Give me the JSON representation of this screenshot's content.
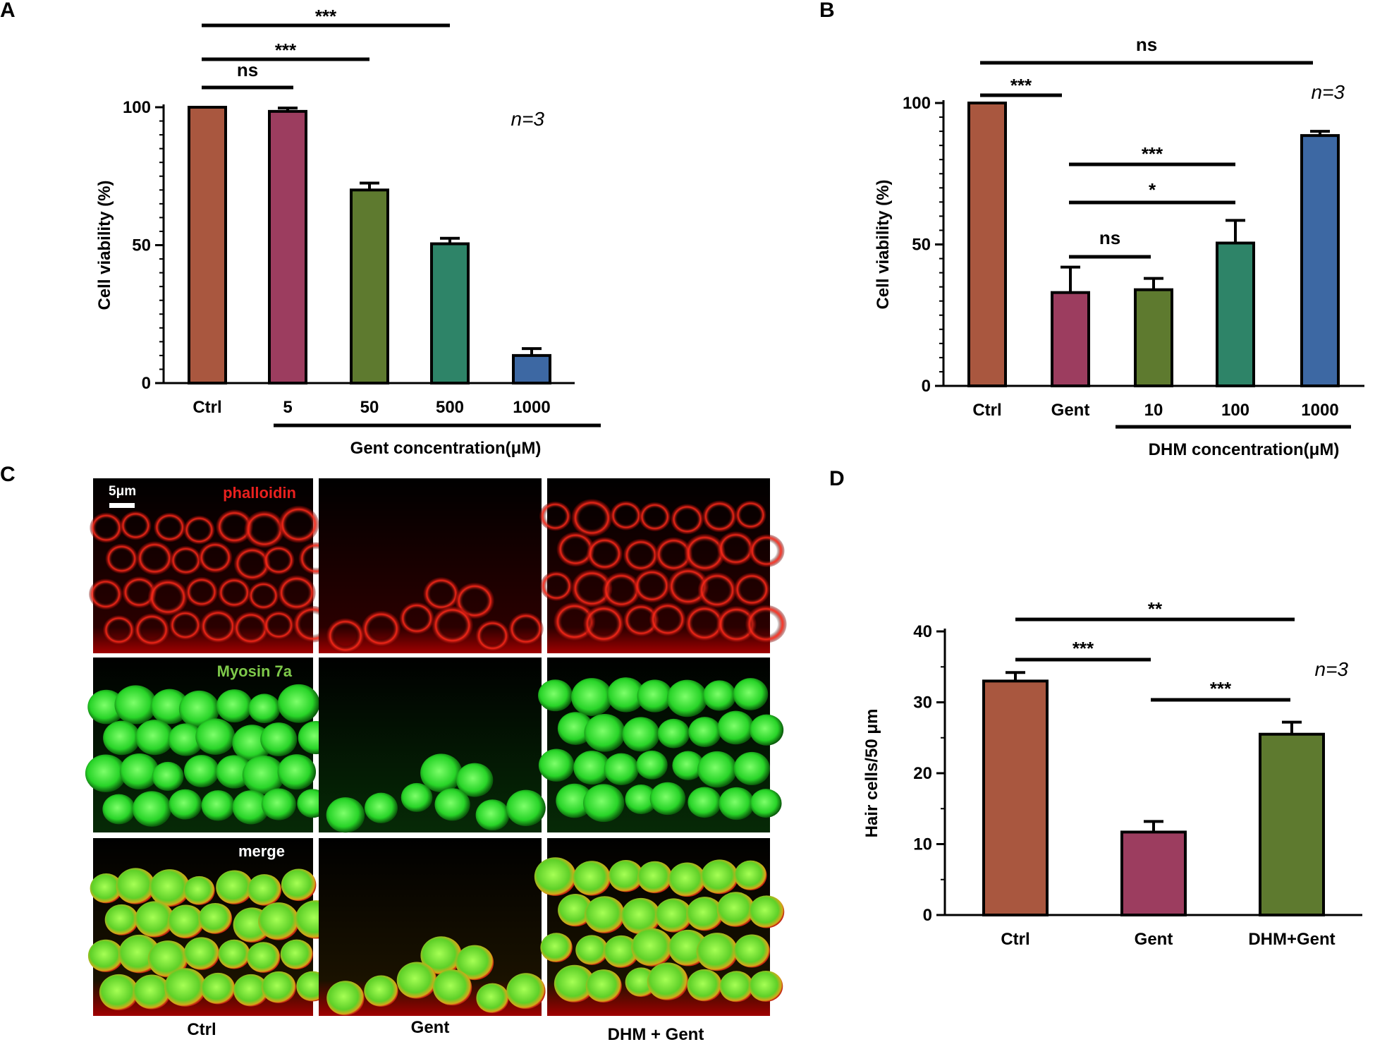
{
  "panels": {
    "A": "A",
    "B": "B",
    "C": "C",
    "D": "D"
  },
  "chart_data": [
    {
      "panel": "A",
      "type": "bar",
      "categories": [
        "Ctrl",
        "5",
        "50",
        "500",
        "1000"
      ],
      "values": [
        100,
        98.5,
        70,
        50.5,
        10
      ],
      "errors": [
        0,
        1.2,
        2.5,
        2.0,
        2.5
      ],
      "colors": [
        "#a9573f",
        "#9c3d5f",
        "#5e7a2f",
        "#2e8468",
        "#3d68a3"
      ],
      "ylabel": "Cell viability (%)",
      "xlabel": "Gent concentration(μM)",
      "ylim": [
        0,
        100
      ],
      "yticks": [
        "0",
        "50",
        "100"
      ],
      "n_label": "n=3",
      "comparisons": [
        {
          "from": 0,
          "to": 1,
          "label": "ns"
        },
        {
          "from": 0,
          "to": 2,
          "label": "***"
        },
        {
          "from": 0,
          "to": 3,
          "label": "***"
        }
      ]
    },
    {
      "panel": "B",
      "type": "bar",
      "categories": [
        "Ctrl",
        "Gent",
        "10",
        "100",
        "1000"
      ],
      "values": [
        100,
        33,
        34,
        50.5,
        88.5
      ],
      "errors": [
        0,
        9,
        4,
        8,
        1.5
      ],
      "colors": [
        "#a9573f",
        "#9c3d5f",
        "#5e7a2f",
        "#2e8468",
        "#3d68a3"
      ],
      "ylabel": "Cell viability (%)",
      "xlabel": "DHM concentration(μM)",
      "ylim": [
        0,
        100
      ],
      "yticks": [
        "0",
        "50",
        "100"
      ],
      "n_label": "n=3",
      "comparisons": [
        {
          "from": 0,
          "to": 4,
          "label": "ns"
        },
        {
          "from": 0,
          "to": 1,
          "label": "***"
        },
        {
          "from": 1,
          "to": 3,
          "label": "***"
        },
        {
          "from": 1,
          "to": 3,
          "label": "*"
        },
        {
          "from": 1,
          "to": 2,
          "label": "ns"
        }
      ]
    },
    {
      "panel": "D",
      "type": "bar",
      "categories": [
        "Ctrl",
        "Gent",
        "DHM+Gent"
      ],
      "values": [
        33,
        11.7,
        25.5
      ],
      "errors": [
        1.2,
        1.5,
        1.7
      ],
      "colors": [
        "#a9573f",
        "#9c3d5f",
        "#5e7a2f"
      ],
      "ylabel": "Hair cells/50 μm",
      "ylim": [
        0,
        40
      ],
      "yticks": [
        "0",
        "10",
        "20",
        "30",
        "40"
      ],
      "n_label": "n=3",
      "comparisons": [
        {
          "from": 0,
          "to": 2,
          "label": "**"
        },
        {
          "from": 0,
          "to": 1,
          "label": "***"
        },
        {
          "from": 1,
          "to": 2,
          "label": "***"
        }
      ]
    }
  ],
  "micrographs": {
    "scale_bar": "5μm",
    "rows": [
      "phalloidin",
      "Myosin 7a",
      "merge"
    ],
    "row_colors": [
      "#e8201e",
      "#7ec94a",
      "#ffffff"
    ],
    "columns": [
      "Ctrl",
      "Gent",
      "DHM + Gent"
    ]
  }
}
